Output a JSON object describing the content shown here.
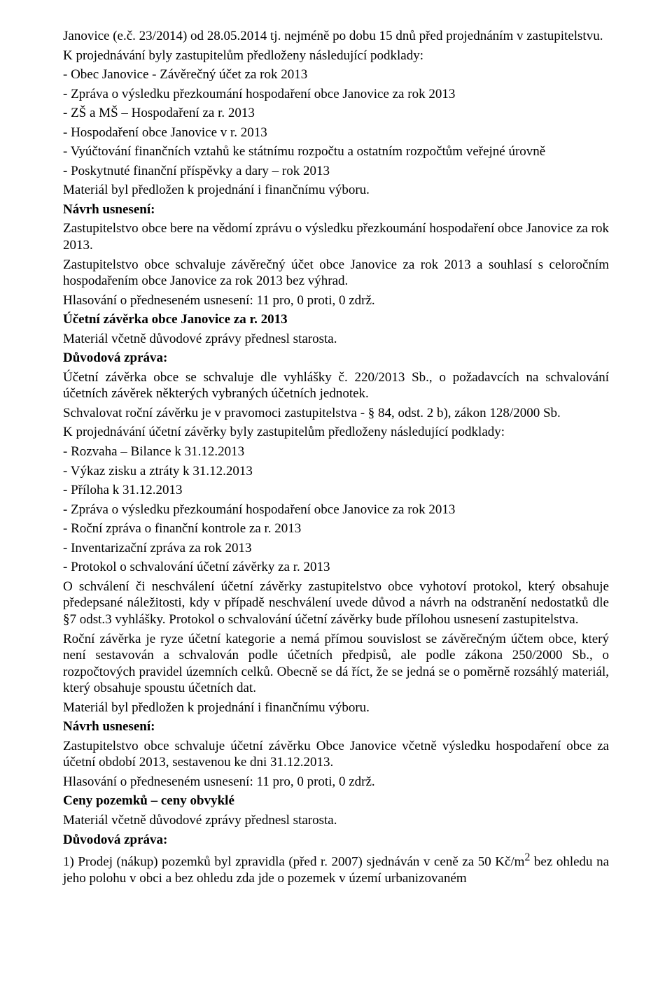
{
  "p1": "Janovice (e.č. 23/2014) od 28.05.2014 tj. nejméně po dobu 15 dnů před projednáním v zastupitelstvu.",
  "p2": "K projednávání byly zastupitelům předloženy následující podklady:",
  "l1": "- Obec Janovice - Závěrečný účet za rok 2013",
  "l2": "- Zpráva o výsledku přezkoumání hospodaření obce Janovice za rok 2013",
  "l3": "- ZŠ a MŠ – Hospodaření za r. 2013",
  "l4": "- Hospodaření obce Janovice v r. 2013",
  "l5": "- Vyúčtování finančních vztahů ke státnímu rozpočtu a ostatním rozpočtům veřejné úrovně",
  "l6": "- Poskytnuté finanční příspěvky a dary – rok 2013",
  "p3": "Materiál byl předložen k projednání i finančnímu výboru.",
  "h1": "Návrh usnesení:",
  "p4": "Zastupitelstvo obce bere na vědomí zprávu o výsledku přezkoumání hospodaření obce Janovice za rok 2013.",
  "p5": "Zastupitelstvo obce schvaluje závěrečný účet obce Janovice za rok 2013 a souhlasí s celoročním hospodařením obce Janovice za rok 2013 bez výhrad.",
  "p6": "Hlasování o předneseném usnesení: 11 pro, 0 proti, 0 zdrž.",
  "h2": "Účetní závěrka obce Janovice za r. 2013",
  "p7": "Materiál včetně důvodové zprávy přednesl starosta.",
  "h3": "Důvodová zpráva:",
  "p8": "Účetní závěrka obce se schvaluje dle vyhlášky č. 220/2013 Sb., o požadavcích na schvalování účetních závěrek některých vybraných účetních jednotek.",
  "p9": "Schvalovat roční závěrku je v pravomoci zastupitelstva - § 84, odst. 2 b), zákon 128/2000 Sb.",
  "p10": "K projednávání účetní závěrky byly zastupitelům předloženy následující podklady:",
  "m1": "- Rozvaha – Bilance k 31.12.2013",
  "m2": "- Výkaz zisku a ztráty k 31.12.2013",
  "m3": "- Příloha k 31.12.2013",
  "m4": "- Zpráva o výsledku přezkoumání hospodaření obce Janovice za rok 2013",
  "m5": "- Roční zpráva o finanční kontrole za r. 2013",
  "m6": "- Inventarizační zpráva za rok 2013",
  "m7": "- Protokol o schvalování účetní závěrky za r. 2013",
  "p11": "O schválení či neschválení účetní závěrky zastupitelstvo obce vyhotoví protokol, který obsahuje předepsané náležitosti, kdy v případě neschválení uvede důvod a návrh na odstranění nedostatků dle §7 odst.3 vyhlášky. Protokol o schvalování účetní závěrky bude přílohou usnesení zastupitelstva.",
  "p12": "Roční závěrka je ryze účetní kategorie a nemá přímou souvislost se závěrečným účtem obce, který není sestavován a schvalován podle účetních předpisů, ale podle zákona 250/2000 Sb., o rozpočtových pravidel územních celků. Obecně se dá říct, že se jedná se o poměrně rozsáhlý materiál, který obsahuje spoustu účetních dat.",
  "p13": "Materiál byl předložen k projednání i finančnímu výboru.",
  "h4": "Návrh usnesení:",
  "p14": "Zastupitelstvo obce schvaluje účetní závěrku Obce Janovice včetně výsledku hospodaření obce za účetní období 2013, sestavenou ke dni 31.12.2013.",
  "p15": "Hlasování o předneseném usnesení: 11 pro, 0 proti, 0 zdrž.",
  "h5": "Ceny pozemků – ceny obvyklé",
  "p16": "Materiál včetně důvodové zprávy přednesl starosta.",
  "h6": "Důvodová zpráva:",
  "p17_a": "1) Prodej (nákup) pozemků byl zpravidla (před r. 2007) sjednáván v ceně za 50 Kč/m",
  "p17_sup": "2",
  "p17_b": " bez ohledu na jeho polohu v obci a bez ohledu zda jde o pozemek v území urbanizovaném"
}
